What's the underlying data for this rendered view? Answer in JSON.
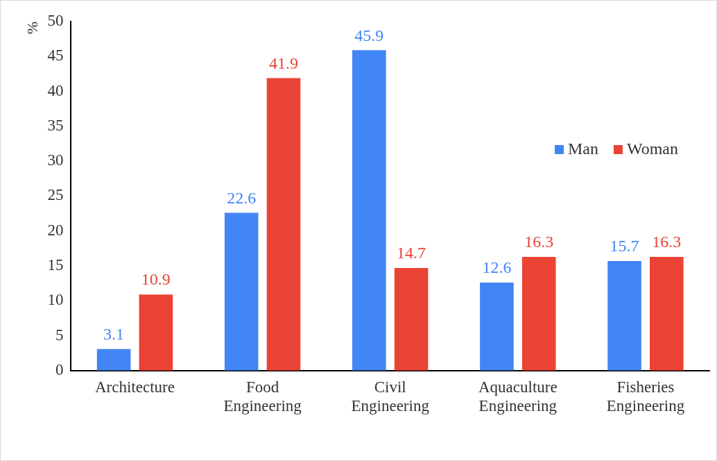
{
  "chart_data": {
    "type": "bar",
    "ylabel": "%",
    "categories": [
      "Architecture",
      "Food Engineering",
      "Civil Engineering",
      "Aquaculture Engineering",
      "Fisheries Engineering"
    ],
    "series": [
      {
        "name": "Man",
        "color": "#4285f4",
        "values": [
          3.1,
          22.6,
          45.9,
          12.6,
          15.7
        ]
      },
      {
        "name": "Woman",
        "color": "#ea4335",
        "values": [
          10.9,
          41.9,
          14.7,
          16.3,
          16.3
        ]
      }
    ],
    "ylim": [
      0,
      50
    ],
    "yticks": [
      0,
      5,
      10,
      15,
      20,
      25,
      30,
      35,
      40,
      45,
      50
    ],
    "grid": false,
    "legend": "right",
    "data_labels": true
  }
}
